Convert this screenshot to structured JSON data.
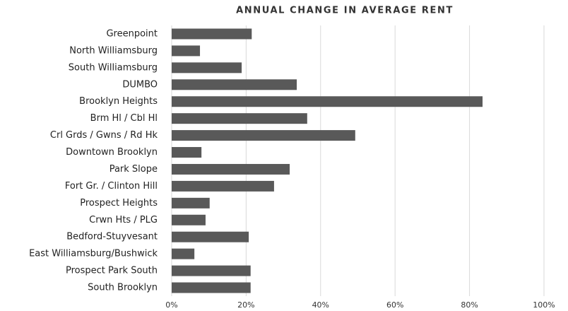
{
  "chart_data": {
    "type": "barh",
    "title": "ANNUAL CHANGE IN AVERAGE RENT",
    "categories": [
      "Greenpoint",
      "North Williamsburg",
      "South Williamsburg",
      "DUMBO",
      "Brooklyn Heights",
      "Brm Hl / Cbl Hl",
      "Crl Grds / Gwns / Rd Hk",
      "Downtown Brooklyn",
      "Park Slope",
      "Fort Gr. / Clinton Hill",
      "Prospect Heights",
      "Crwn Hts / PLG",
      "Bedford-Stuyvesant",
      "East Williamsburg/Bushwick",
      "Prospect Park South",
      "South Brooklyn"
    ],
    "values": [
      21.5,
      7.6,
      18.8,
      33.6,
      83.5,
      36.4,
      49.3,
      8,
      31.7,
      27.5,
      10.2,
      9.1,
      20.7,
      6.1,
      21.2,
      21.2
    ],
    "color": "#595959",
    "xlim": [
      0,
      100
    ],
    "xticks": [
      {
        "value": 0,
        "label": "0%"
      },
      {
        "value": 20,
        "label": "20%"
      },
      {
        "value": 40,
        "label": "40%"
      },
      {
        "value": 60,
        "label": "60%"
      },
      {
        "value": 80,
        "label": "80%"
      },
      {
        "value": 100,
        "label": "100%"
      }
    ],
    "grid": true
  }
}
